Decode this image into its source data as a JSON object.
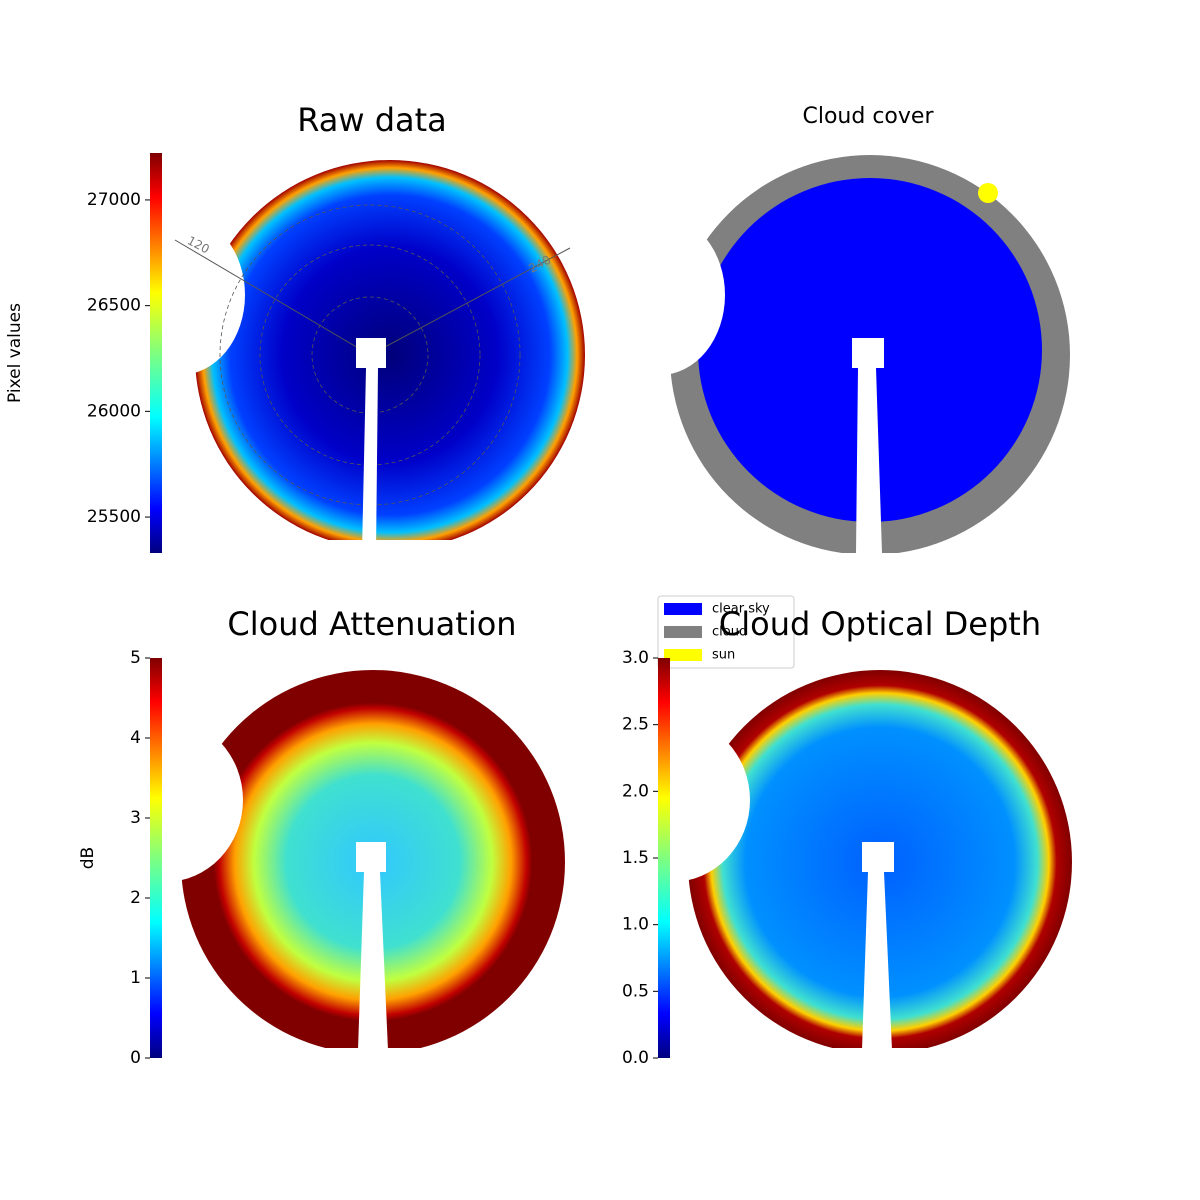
{
  "chart_data": [
    {
      "type": "image",
      "title": "Raw data",
      "cmap": "jet",
      "clabel": "Pixel values",
      "clim": [
        25330,
        27222
      ],
      "cticks": [
        25500,
        26000,
        26500,
        27000
      ],
      "annotations": [
        "120",
        "240"
      ]
    },
    {
      "type": "categorical",
      "title": "Cloud cover",
      "legend": [
        {
          "name": "clear sky",
          "color": "#0000ff"
        },
        {
          "name": "cloud",
          "color": "#808080"
        },
        {
          "name": "sun",
          "color": "#ffff00"
        }
      ]
    },
    {
      "type": "image",
      "title": "Cloud Attenuation",
      "cmap": "jet",
      "clabel": "dB",
      "clim": [
        0,
        5
      ],
      "cticks": [
        0,
        1,
        2,
        3,
        4,
        5
      ]
    },
    {
      "type": "image",
      "title": "Cloud Optical Depth",
      "cmap": "jet",
      "clim": [
        0,
        3
      ],
      "cticks": [
        {
          "value": 0,
          "label": "0.0"
        },
        {
          "value": 0.5,
          "label": "0.5"
        },
        {
          "value": 1,
          "label": "1.0"
        },
        {
          "value": 1.5,
          "label": "1.5"
        },
        {
          "value": 2,
          "label": "2.0"
        },
        {
          "value": 2.5,
          "label": "2.5"
        },
        {
          "value": 3,
          "label": "3.0"
        }
      ]
    }
  ]
}
